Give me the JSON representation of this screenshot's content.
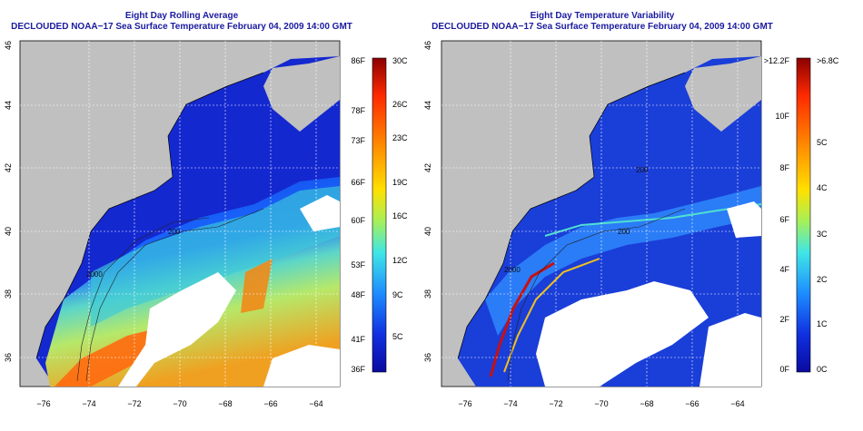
{
  "left_panel": {
    "title_line1": "Eight Day Rolling Average",
    "title_line2": "DECLOUDED NOAA−17 Sea Surface Temperature February 04, 2009 14:00 GMT",
    "x_ticks": [
      "−76",
      "−74",
      "−72",
      "−70",
      "−68",
      "−66",
      "−64"
    ],
    "y_ticks": [
      "46",
      "44",
      "42",
      "40",
      "38",
      "36"
    ],
    "colorbar_left_labels": [
      "86F",
      "78F",
      "73F",
      "66F",
      "60F",
      "53F",
      "48F",
      "41F",
      "36F"
    ],
    "colorbar_right_labels": [
      "30C",
      "26C",
      "23C",
      "19C",
      "16C",
      "12C",
      "9C",
      "5C"
    ],
    "colorbar_colors": [
      "#8b0000",
      "#ff2a00",
      "#ff8c00",
      "#ffe000",
      "#a6f05a",
      "#3fe6e6",
      "#1d8cff",
      "#1030e0",
      "#0a0aa0"
    ]
  },
  "right_panel": {
    "title_line1": "Eight Day Temperature Variability",
    "title_line2": "DECLOUDED NOAA−17 Sea Surface Temperature February 04, 2009 14:00 GMT",
    "x_ticks": [
      "−76",
      "−74",
      "−72",
      "−70",
      "−68",
      "−66",
      "−64"
    ],
    "y_ticks": [
      "46",
      "44",
      "42",
      "40",
      "38",
      "36"
    ],
    "colorbar_left_labels": [
      ">12.2F",
      "10F",
      "8F",
      "6F",
      "4F",
      "2F",
      "0F"
    ],
    "colorbar_right_labels": [
      ">6.8C",
      "5C",
      "4C",
      "3C",
      "2C",
      "1C",
      "0C"
    ],
    "colorbar_colors": [
      "#8b0000",
      "#ff2a00",
      "#ff8c00",
      "#ffe000",
      "#a6f05a",
      "#3fe6e6",
      "#1d8cff",
      "#1030e0",
      "#0a0aa0"
    ]
  },
  "contour_labels": [
    "200",
    "2000",
    "200",
    "2000",
    "200"
  ]
}
